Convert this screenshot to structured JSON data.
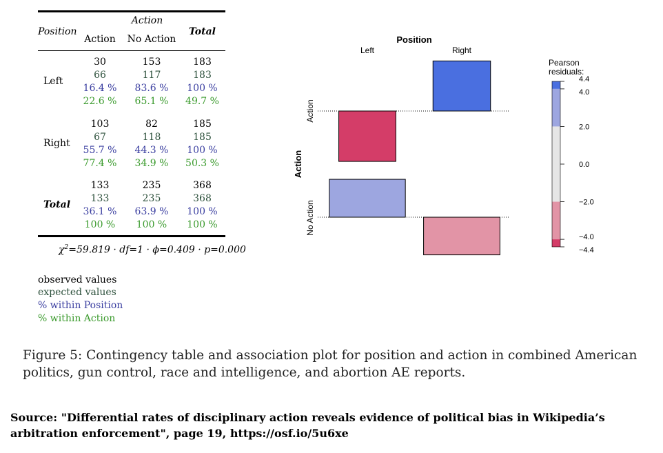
{
  "table": {
    "col_group_header": "Action",
    "row_var_header": "Position",
    "col_headers": [
      "Action",
      "No Action"
    ],
    "total_header": "Total",
    "rows": [
      {
        "label": "Left",
        "observed": [
          "30",
          "153",
          "183"
        ],
        "expected": [
          "66",
          "117",
          "183"
        ],
        "pct_row": [
          "16.4 %",
          "83.6 %",
          "100 %"
        ],
        "pct_col": [
          "22.6 %",
          "65.1 %",
          "49.7 %"
        ]
      },
      {
        "label": "Right",
        "observed": [
          "103",
          "82",
          "185"
        ],
        "expected": [
          "67",
          "118",
          "185"
        ],
        "pct_row": [
          "55.7 %",
          "44.3 %",
          "100 %"
        ],
        "pct_col": [
          "77.4 %",
          "34.9 %",
          "50.3 %"
        ]
      },
      {
        "label": "Total",
        "observed": [
          "133",
          "235",
          "368"
        ],
        "expected": [
          "133",
          "235",
          "368"
        ],
        "pct_row": [
          "36.1 %",
          "63.9 %",
          "100 %"
        ],
        "pct_col": [
          "100 %",
          "100 %",
          "100 %"
        ]
      }
    ],
    "stats_prefix": "χ",
    "stats_sup": "2",
    "stats_rest": "=59.819 · df=1 · ϕ=0.409 · p=0.000"
  },
  "table_legend": {
    "observed": "observed values",
    "expected": "expected values",
    "pct_row": "% within Position",
    "pct_col": "% within Action"
  },
  "plot": {
    "x_title": "Position",
    "x_levels": [
      "Left",
      "Right"
    ],
    "y_title": "Action",
    "y_levels": [
      "Action",
      "No Action"
    ],
    "legend_title_1": "Pearson",
    "legend_title_2": "residuals:",
    "legend_ticks": [
      "4.4",
      "4.0",
      "2.0",
      "0.0",
      "−2.0",
      "−4.0",
      "−4.4"
    ],
    "colors": {
      "strong_pos": "#4a6fe0",
      "mid_pos": "#9da6e0",
      "neutral": "#e6e6e6",
      "mid_neg": "#e294a6",
      "strong_neg": "#d43d68"
    }
  },
  "chart_data": {
    "type": "association_plot",
    "x_title": "Position",
    "y_title": "Action",
    "cells": [
      {
        "position": "Left",
        "action": "Action",
        "residual": -4.43,
        "observed": 30,
        "expected": 66
      },
      {
        "position": "Right",
        "action": "Action",
        "residual": 4.4,
        "observed": 103,
        "expected": 67
      },
      {
        "position": "Left",
        "action": "No Action",
        "residual": 3.33,
        "observed": 153,
        "expected": 117
      },
      {
        "position": "Right",
        "action": "No Action",
        "residual": -3.31,
        "observed": 82,
        "expected": 118
      }
    ],
    "legend_range": [
      -4.4,
      4.4
    ]
  },
  "caption": "Figure 5: Contingency table and association plot for position and action in combined American politics, gun control, race and intelligence, and abortion AE reports.",
  "source": "Source: \"Differential rates of disciplinary action reveals evidence of political bias in Wikipedia’s arbitration enforcement\", page 19, https://osf.io/5u6xe"
}
